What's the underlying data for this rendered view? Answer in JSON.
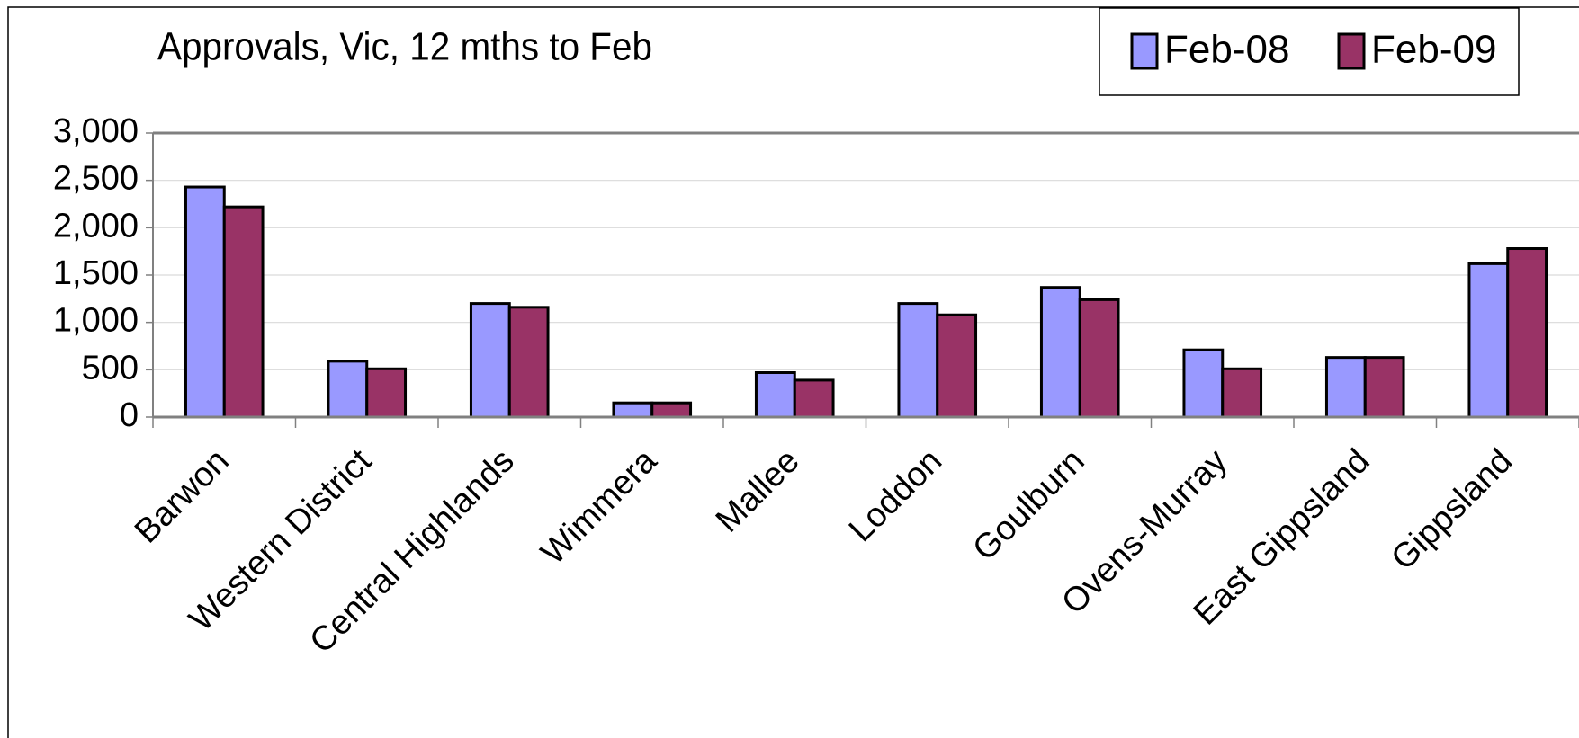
{
  "chart_data": {
    "type": "bar",
    "title": "Approvals, Vic, 12 mths to Feb",
    "categories": [
      "Barwon",
      "Western District",
      "Central Highlands",
      "Wimmera",
      "Mallee",
      "Loddon",
      "Goulburn",
      "Ovens-Murray",
      "East Gippsland",
      "Gippsland"
    ],
    "series": [
      {
        "name": "Feb-08",
        "color": "#9999ff",
        "values": [
          2430,
          590,
          1200,
          150,
          470,
          1200,
          1370,
          710,
          630,
          1620
        ]
      },
      {
        "name": "Feb-09",
        "color": "#993366",
        "values": [
          2220,
          510,
          1160,
          150,
          390,
          1080,
          1240,
          510,
          630,
          1780
        ]
      }
    ],
    "ylim": [
      0,
      3000
    ],
    "yticks": [
      0,
      500,
      {
        "value": 1000,
        "label": "1,000"
      },
      {
        "value": 1500,
        "label": "1,500"
      },
      {
        "value": 2000,
        "label": "2,000"
      },
      {
        "value": 2500,
        "label": "2,500"
      },
      {
        "value": 3000,
        "label": "3,000"
      }
    ],
    "grid": true,
    "legend": "top-right"
  }
}
